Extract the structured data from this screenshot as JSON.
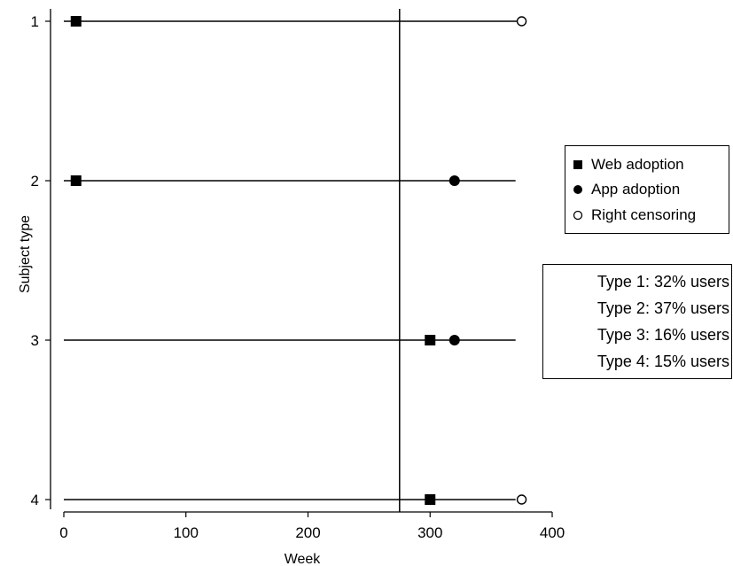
{
  "chart_data": {
    "type": "scatter",
    "title": "",
    "xlabel": "Week",
    "ylabel": "Subject type",
    "xlim": [
      0,
      400
    ],
    "x_ticks": [
      0,
      100,
      200,
      300,
      400
    ],
    "y_categories": [
      "1",
      "2",
      "3",
      "4"
    ],
    "y_order": "top-to-bottom",
    "lines": [
      {
        "subject": "1",
        "x_start": 0,
        "x_end": 375
      },
      {
        "subject": "2",
        "x_start": 0,
        "x_end": 370
      },
      {
        "subject": "3",
        "x_start": 0,
        "x_end": 370
      },
      {
        "subject": "4",
        "x_start": 0,
        "x_end": 370
      }
    ],
    "vertical_line_x": 275,
    "series": [
      {
        "name": "Web adoption",
        "marker": "filled-square",
        "points": [
          {
            "subject": "1",
            "x": 10
          },
          {
            "subject": "2",
            "x": 10
          },
          {
            "subject": "3",
            "x": 300
          },
          {
            "subject": "4",
            "x": 300
          }
        ]
      },
      {
        "name": "App adoption",
        "marker": "filled-circle",
        "points": [
          {
            "subject": "2",
            "x": 320
          },
          {
            "subject": "3",
            "x": 320
          }
        ]
      },
      {
        "name": "Right censoring",
        "marker": "hollow-circle",
        "points": [
          {
            "subject": "1",
            "x": 375
          },
          {
            "subject": "4",
            "x": 375
          }
        ]
      }
    ],
    "legend": {
      "placement": "right",
      "entries": [
        {
          "label": "Web adoption",
          "marker": "filled-square"
        },
        {
          "label": "App adoption",
          "marker": "filled-circle"
        },
        {
          "label": "Right censoring",
          "marker": "hollow-circle"
        }
      ]
    },
    "annotations": [
      "Type 1: 32% users",
      "Type 2: 37% users",
      "Type 3: 16% users",
      "Type 4: 15% users"
    ],
    "grid": false
  }
}
